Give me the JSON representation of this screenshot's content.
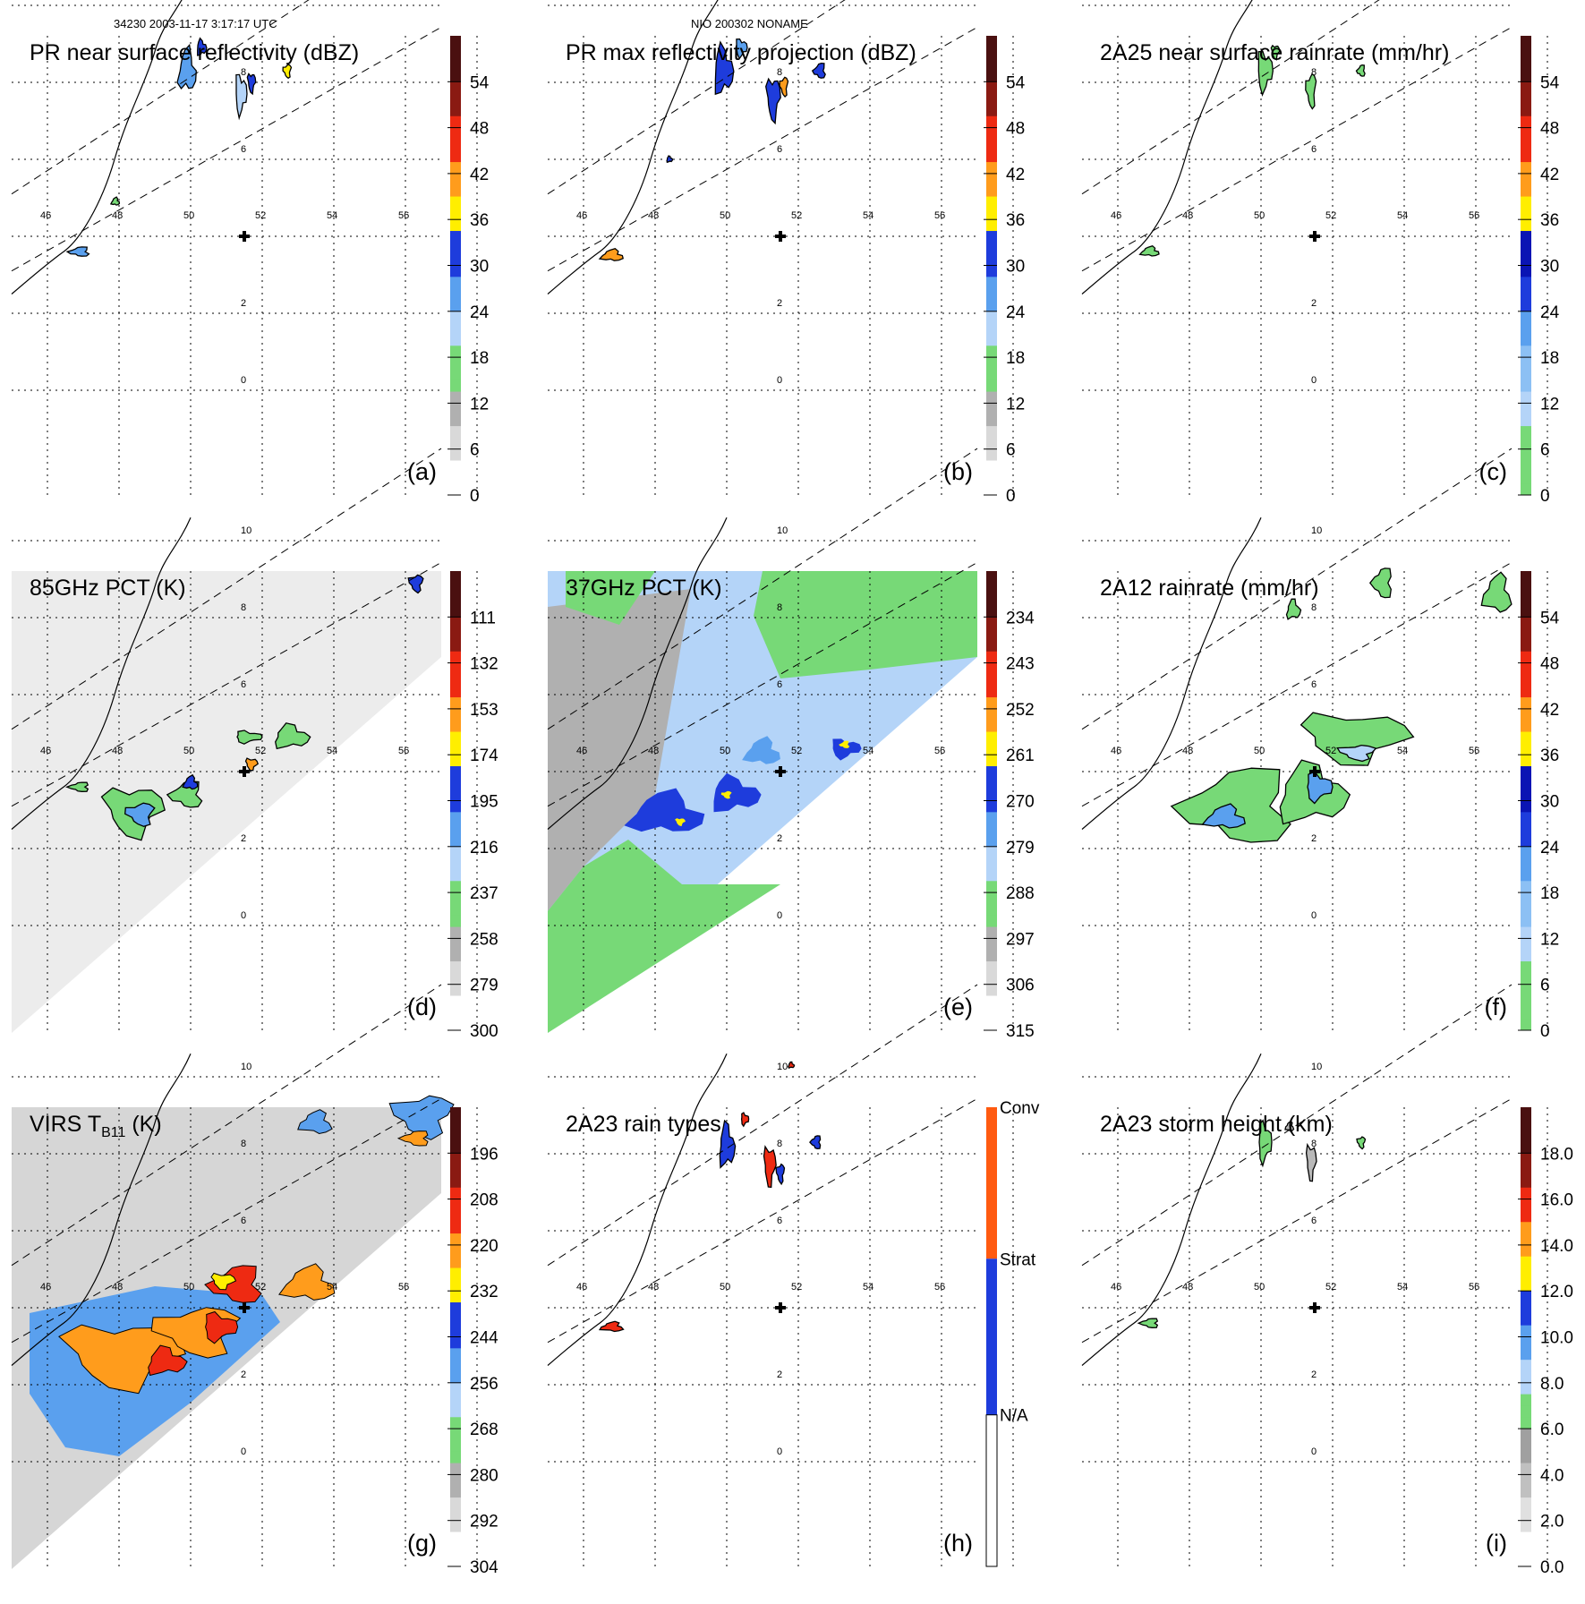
{
  "header": {
    "left": "34230 2003-11-17 3:17:17 UTC",
    "center": "NIO 200302 NONAME"
  },
  "colors": {
    "green": "#77d977",
    "lightblue": "#b4d4f8",
    "midblue": "#5aa0ee",
    "blue": "#1e3cdc",
    "darkblue": "#0a14b4",
    "yellow": "#ffee00",
    "orange": "#ff9c1c",
    "red": "#ee2a12",
    "darkred": "#8a1a12",
    "gray": "#b8b8b8",
    "lightgray": "#e8e8e8",
    "brown": "#5a2010"
  },
  "map": {
    "lon_labels": [
      "46",
      "48",
      "50",
      "52",
      "54",
      "56"
    ],
    "lat_labels": [
      "10",
      "8",
      "6",
      "2",
      "0"
    ]
  },
  "chart_data": [
    {
      "id": "a",
      "type": "heatmap",
      "title": "PR near surface reflectivity (dBZ)",
      "panel_label": "(a)",
      "colorbar": {
        "ticks": [
          "54",
          "48",
          "42",
          "36",
          "30",
          "24",
          "18",
          "12",
          "6",
          "0"
        ]
      },
      "features": [
        {
          "lon": 49.9,
          "lat": 8.3,
          "value": 26
        },
        {
          "lon": 51.4,
          "lat": 7.9,
          "value": 24
        },
        {
          "lon": 46.8,
          "lat": 3.5,
          "value": 27
        }
      ]
    },
    {
      "id": "b",
      "type": "heatmap",
      "title": "PR max reflectivity projection (dBZ)",
      "panel_label": "(b)",
      "colorbar": {
        "ticks": [
          "54",
          "48",
          "42",
          "36",
          "30",
          "24",
          "18",
          "12",
          "6",
          "0"
        ]
      },
      "features": [
        {
          "lon": 50.0,
          "lat": 8.3,
          "value": 30
        },
        {
          "lon": 51.3,
          "lat": 7.6,
          "value": 32
        },
        {
          "lon": 46.8,
          "lat": 3.5,
          "value": 38
        }
      ]
    },
    {
      "id": "c",
      "type": "heatmap",
      "title": "2A25 near surface rainrate (mm/hr)",
      "panel_label": "(c)",
      "colorbar": {
        "ticks": [
          "54",
          "48",
          "42",
          "36",
          "30",
          "24",
          "18",
          "12",
          "6",
          "0"
        ]
      },
      "features": [
        {
          "lon": 50.1,
          "lat": 8.3,
          "value": 4
        },
        {
          "lon": 51.4,
          "lat": 7.8,
          "value": 3
        },
        {
          "lon": 46.9,
          "lat": 3.6,
          "value": 4
        }
      ]
    },
    {
      "id": "d",
      "type": "heatmap",
      "title": "85GHz PCT (K)",
      "panel_label": "(d)",
      "colorbar": {
        "ticks": [
          "111",
          "132",
          "153",
          "174",
          "195",
          "216",
          "237",
          "258",
          "279",
          "300"
        ]
      },
      "features": [
        {
          "lon": 48.4,
          "lat": 3.0,
          "value": 225
        },
        {
          "lon": 52.8,
          "lat": 4.9,
          "value": 232
        },
        {
          "lon": 49.9,
          "lat": 3.4,
          "value": 230
        }
      ]
    },
    {
      "id": "e",
      "type": "heatmap",
      "title": "37GHz PCT (K)",
      "panel_label": "(e)",
      "colorbar": {
        "ticks": [
          "234",
          "243",
          "252",
          "261",
          "270",
          "279",
          "288",
          "297",
          "306",
          "315"
        ]
      },
      "features": [
        {
          "lon": 48.3,
          "lat": 2.9,
          "value": 268
        },
        {
          "lon": 50.2,
          "lat": 3.4,
          "value": 270
        },
        {
          "lon": 53.3,
          "lat": 4.6,
          "value": 264
        }
      ]
    },
    {
      "id": "f",
      "type": "heatmap",
      "title": "2A12 rainrate (mm/hr)",
      "panel_label": "(f)",
      "colorbar": {
        "ticks": [
          "54",
          "48",
          "42",
          "36",
          "30",
          "24",
          "18",
          "12",
          "6",
          "0"
        ]
      },
      "features": [
        {
          "lon": 49.3,
          "lat": 3.1,
          "value": 8
        },
        {
          "lon": 51.6,
          "lat": 3.4,
          "value": 10
        },
        {
          "lon": 52.6,
          "lat": 4.8,
          "value": 6
        }
      ]
    },
    {
      "id": "g",
      "type": "heatmap",
      "title_main": "VIRS T",
      "title_sub": "B11",
      "title_unit": " (K)",
      "panel_label": "(g)",
      "colorbar": {
        "ticks": [
          "196",
          "208",
          "220",
          "232",
          "244",
          "256",
          "268",
          "280",
          "292",
          "304"
        ]
      },
      "features": [
        {
          "lon": 49.7,
          "lat": 3.0,
          "value": 212
        },
        {
          "lon": 51.1,
          "lat": 4.2,
          "value": 205
        },
        {
          "lon": 47.8,
          "lat": 2.5,
          "value": 214
        }
      ]
    },
    {
      "id": "h",
      "type": "heatmap",
      "title": "2A23 rain types",
      "panel_label": "(h)",
      "colorbar": {
        "ticks": [
          "Conv",
          "Strat",
          "N/A"
        ]
      },
      "features": [
        {
          "lon": 50.0,
          "lat": 8.2,
          "value": "Strat"
        },
        {
          "lon": 51.2,
          "lat": 7.7,
          "value": "Conv"
        },
        {
          "lon": 46.8,
          "lat": 3.5,
          "value": "Conv"
        }
      ]
    },
    {
      "id": "i",
      "type": "heatmap",
      "title": "2A23 storm height (km)",
      "panel_label": "(i)",
      "colorbar": {
        "ticks": [
          "18.0",
          "16.0",
          "14.0",
          "12.0",
          "10.0",
          "8.0",
          "6.0",
          "4.0",
          "2.0",
          "0.0"
        ]
      },
      "features": [
        {
          "lon": 50.1,
          "lat": 8.3,
          "value": 5.5
        },
        {
          "lon": 51.4,
          "lat": 7.8,
          "value": 4.5
        },
        {
          "lon": 46.9,
          "lat": 3.6,
          "value": 5.0
        }
      ]
    }
  ]
}
